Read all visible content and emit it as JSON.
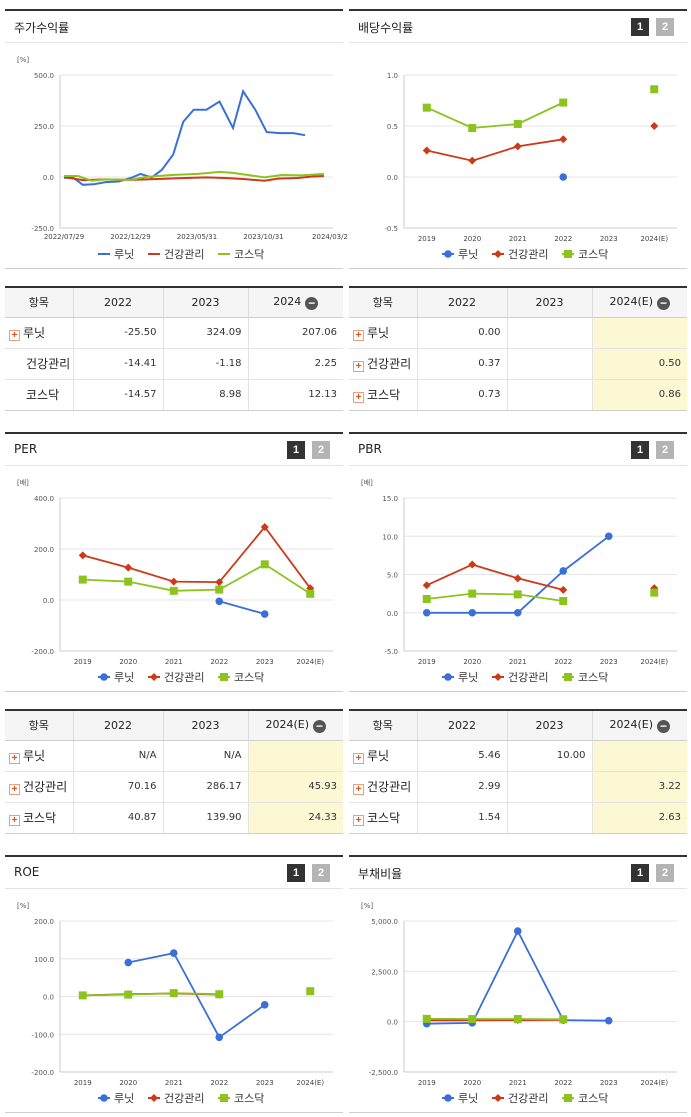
{
  "colors": {
    "luneat": "#3b6fd8",
    "health": "#cc3a1a",
    "kosdaq": "#8cc31f"
  },
  "legend": [
    "루닛",
    "건강관리",
    "코스닥"
  ],
  "icons": {
    "expand": "plus-icon",
    "collapse": "minus-icon"
  },
  "panels": {
    "stock_return": {
      "title": "주가수익률",
      "chart_data": {
        "type": "line",
        "unit": "[%]",
        "ylim": [
          -250,
          500
        ],
        "yticks": [
          "500.0",
          "250.0",
          "0.0",
          "-250.0"
        ],
        "xlim": [
          "2022-07-29",
          "2024-03-29"
        ],
        "xticks": [
          "2022/07/29",
          "2022/12/29",
          "2023/05/31",
          "2023/10/31",
          "2024/03/2"
        ],
        "series": [
          {
            "name": "루닛",
            "points": [
              [
                "2022-07-29",
                -4
              ],
              [
                "2022-08-20",
                -5
              ],
              [
                "2022-09-10",
                -38
              ],
              [
                "2022-10-05",
                -36
              ],
              [
                "2022-11-01",
                -25
              ],
              [
                "2022-12-01",
                -22
              ],
              [
                "2022-12-29",
                -5
              ],
              [
                "2023-01-20",
                15
              ],
              [
                "2023-02-15",
                -2
              ],
              [
                "2023-03-10",
                35
              ],
              [
                "2023-04-05",
                110
              ],
              [
                "2023-04-28",
                270
              ],
              [
                "2023-05-22",
                330
              ],
              [
                "2023-06-20",
                330
              ],
              [
                "2023-07-20",
                370
              ],
              [
                "2023-08-20",
                240
              ],
              [
                "2023-09-12",
                420
              ],
              [
                "2023-10-10",
                330
              ],
              [
                "2023-11-05",
                220
              ],
              [
                "2023-12-05",
                215
              ],
              [
                "2024-01-05",
                215
              ],
              [
                "2024-02-01",
                205
              ]
            ]
          },
          {
            "name": "건강관리",
            "points": [
              [
                "2022-07-29",
                0
              ],
              [
                "2022-09-10",
                -15
              ],
              [
                "2022-11-01",
                -12
              ],
              [
                "2022-12-29",
                -14
              ],
              [
                "2023-03-01",
                -10
              ],
              [
                "2023-05-01",
                -5
              ],
              [
                "2023-06-20",
                -2
              ],
              [
                "2023-08-01",
                -5
              ],
              [
                "2023-09-12",
                -10
              ],
              [
                "2023-10-31",
                -18
              ],
              [
                "2023-12-01",
                -8
              ],
              [
                "2024-01-15",
                -5
              ],
              [
                "2024-02-15",
                2
              ],
              [
                "2024-03-15",
                5
              ]
            ]
          },
          {
            "name": "코스닥",
            "points": [
              [
                "2022-07-29",
                5
              ],
              [
                "2022-08-30",
                5
              ],
              [
                "2022-09-30",
                -18
              ],
              [
                "2022-11-01",
                -12
              ],
              [
                "2022-12-29",
                -14
              ],
              [
                "2023-02-01",
                0
              ],
              [
                "2023-04-01",
                10
              ],
              [
                "2023-06-01",
                15
              ],
              [
                "2023-07-20",
                25
              ],
              [
                "2023-08-20",
                20
              ],
              [
                "2023-10-31",
                -2
              ],
              [
                "2023-12-10",
                10
              ],
              [
                "2024-01-20",
                8
              ],
              [
                "2024-02-20",
                12
              ],
              [
                "2024-03-15",
                15
              ]
            ]
          }
        ]
      },
      "table": {
        "headers": [
          "항목",
          "2022",
          "2023",
          "2024"
        ],
        "rows": [
          {
            "name": "루닛",
            "v": [
              "-25.50",
              "324.09",
              "207.06"
            ]
          },
          {
            "name": "건강관리",
            "v": [
              "-14.41",
              "-1.18",
              "2.25"
            ]
          },
          {
            "name": "코스닥",
            "v": [
              "-14.57",
              "8.98",
              "12.13"
            ]
          }
        ]
      }
    },
    "dividend": {
      "title": "배당수익률",
      "btn1": "1",
      "btn2": "2",
      "chart_data": {
        "type": "line",
        "unit": "",
        "ylim": [
          -0.5,
          1.0
        ],
        "yticks": [
          "1.0",
          "0.5",
          "0.0",
          "-0.5"
        ],
        "categories": [
          "2019",
          "2020",
          "2021",
          "2022",
          "2023",
          "2024(E)"
        ],
        "series": [
          {
            "name": "루닛",
            "values": [
              null,
              null,
              null,
              0.0,
              null,
              null
            ]
          },
          {
            "name": "건강관리",
            "values": [
              0.26,
              0.16,
              0.3,
              0.37,
              null,
              0.5
            ]
          },
          {
            "name": "코스닥",
            "values": [
              0.68,
              0.48,
              0.52,
              0.73,
              null,
              0.86
            ]
          }
        ]
      },
      "table": {
        "headers": [
          "항목",
          "2022",
          "2023",
          "2024(E)"
        ],
        "rows": [
          {
            "name": "루닛",
            "v": [
              "0.00",
              "",
              ""
            ]
          },
          {
            "name": "건강관리",
            "v": [
              "0.37",
              "",
              "0.50"
            ]
          },
          {
            "name": "코스닥",
            "v": [
              "0.73",
              "",
              "0.86"
            ]
          }
        ]
      }
    },
    "per": {
      "title": "PER",
      "btn1": "1",
      "btn2": "2",
      "chart_data": {
        "type": "line",
        "unit": "[배]",
        "ylim": [
          -200,
          400
        ],
        "yticks": [
          "400.0",
          "200.0",
          "0.0",
          "-200.0"
        ],
        "categories": [
          "2019",
          "2020",
          "2021",
          "2022",
          "2023",
          "2024(E)"
        ],
        "series": [
          {
            "name": "루닛",
            "values": [
              null,
              null,
              null,
              -5,
              -55,
              null
            ]
          },
          {
            "name": "건강관리",
            "values": [
              175,
              127,
              72,
              70.16,
              286.17,
              45.93
            ]
          },
          {
            "name": "코스닥",
            "values": [
              80,
              72,
              36,
              40.87,
              139.9,
              24.33
            ]
          }
        ]
      },
      "table": {
        "headers": [
          "항목",
          "2022",
          "2023",
          "2024(E)"
        ],
        "rows": [
          {
            "name": "루닛",
            "v": [
              "N/A",
              "N/A",
              ""
            ]
          },
          {
            "name": "건강관리",
            "v": [
              "70.16",
              "286.17",
              "45.93"
            ]
          },
          {
            "name": "코스닥",
            "v": [
              "40.87",
              "139.90",
              "24.33"
            ]
          }
        ]
      }
    },
    "pbr": {
      "title": "PBR",
      "btn1": "1",
      "btn2": "2",
      "chart_data": {
        "type": "line",
        "unit": "[배]",
        "ylim": [
          -5,
          15
        ],
        "yticks": [
          "15.0",
          "10.0",
          "5.0",
          "0.0",
          "-5.0"
        ],
        "categories": [
          "2019",
          "2020",
          "2021",
          "2022",
          "2023",
          "2024(E)"
        ],
        "series": [
          {
            "name": "루닛",
            "values": [
              0,
              0,
              0,
              5.46,
              10.0,
              null
            ]
          },
          {
            "name": "건강관리",
            "values": [
              3.6,
              6.3,
              4.5,
              2.99,
              null,
              3.22
            ]
          },
          {
            "name": "코스닥",
            "values": [
              1.8,
              2.5,
              2.4,
              1.54,
              null,
              2.63
            ]
          }
        ]
      },
      "table": {
        "headers": [
          "항목",
          "2022",
          "2023",
          "2024(E)"
        ],
        "rows": [
          {
            "name": "루닛",
            "v": [
              "5.46",
              "10.00",
              ""
            ]
          },
          {
            "name": "건강관리",
            "v": [
              "2.99",
              "",
              "3.22"
            ]
          },
          {
            "name": "코스닥",
            "v": [
              "1.54",
              "",
              "2.63"
            ]
          }
        ]
      }
    },
    "roe": {
      "title": "ROE",
      "btn1": "1",
      "btn2": "2",
      "chart_data": {
        "type": "line",
        "unit": "[%]",
        "ylim": [
          -200,
          200
        ],
        "yticks": [
          "200.0",
          "100.0",
          "0.0",
          "-100.0",
          "-200.0"
        ],
        "categories": [
          "2019",
          "2020",
          "2021",
          "2022",
          "2023",
          "2024(E)"
        ],
        "series": [
          {
            "name": "루닛",
            "values": [
              null,
              90,
              115,
              -108,
              -22,
              null
            ]
          },
          {
            "name": "건강관리",
            "values": [
              3,
              6,
              8,
              5,
              null,
              null
            ]
          },
          {
            "name": "코스닥",
            "values": [
              3,
              5,
              9,
              6,
              null,
              14
            ]
          }
        ]
      }
    },
    "debt": {
      "title": "부채비율",
      "btn1": "1",
      "btn2": "2",
      "chart_data": {
        "type": "line",
        "unit": "[%]",
        "ylim": [
          -2500,
          5000
        ],
        "yticks": [
          "5,000.0",
          "2,500.0",
          "0.0",
          "-2,500.0"
        ],
        "categories": [
          "2019",
          "2020",
          "2021",
          "2022",
          "2023",
          "2024(E)"
        ],
        "series": [
          {
            "name": "루닛",
            "values": [
              -100,
              -60,
              4500,
              80,
              50,
              null
            ]
          },
          {
            "name": "건강관리",
            "values": [
              70,
              75,
              80,
              85,
              null,
              null
            ]
          },
          {
            "name": "코스닥",
            "values": [
              140,
              130,
              130,
              120,
              null,
              null
            ]
          }
        ]
      }
    }
  }
}
